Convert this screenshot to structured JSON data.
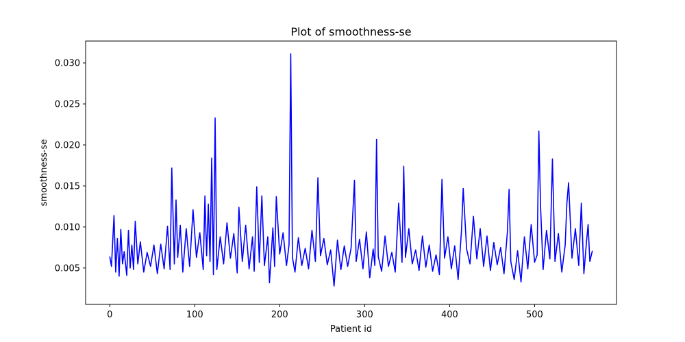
{
  "chart_data": {
    "type": "line",
    "title": "Plot of smoothness-se",
    "xlabel": "Patient id",
    "ylabel": "smoothness-se",
    "xlim": [
      -28.4,
      596.4
    ],
    "ylim": [
      0.000565,
      0.032669
    ],
    "xticks": [
      0,
      100,
      200,
      300,
      400,
      500
    ],
    "xtick_labels": [
      "0",
      "100",
      "200",
      "300",
      "400",
      "500"
    ],
    "yticks": [
      0.005,
      0.01,
      0.015,
      0.02,
      0.025,
      0.03
    ],
    "ytick_labels": [
      "0.005",
      "0.010",
      "0.015",
      "0.020",
      "0.025",
      "0.030"
    ],
    "grid": false,
    "series": [
      {
        "color": "#0000ff",
        "x": [
          0,
          2,
          5,
          7,
          9,
          11,
          13,
          15,
          17,
          20,
          22,
          24,
          26,
          28,
          30,
          33,
          36,
          40,
          44,
          48,
          52,
          56,
          60,
          64,
          68,
          71,
          73,
          76,
          78,
          80,
          83,
          86,
          90,
          94,
          98,
          102,
          106,
          110,
          112,
          114,
          116,
          118,
          120,
          122,
          124,
          126,
          130,
          134,
          138,
          142,
          146,
          150,
          152,
          156,
          160,
          164,
          168,
          170,
          173,
          176,
          179,
          182,
          186,
          188,
          192,
          194,
          196,
          200,
          204,
          208,
          211,
          213,
          215,
          218,
          222,
          226,
          230,
          234,
          238,
          242,
          245,
          248,
          252,
          256,
          260,
          264,
          268,
          272,
          276,
          280,
          284,
          288,
          290,
          294,
          298,
          302,
          306,
          310,
          312,
          314,
          316,
          320,
          324,
          328,
          332,
          336,
          340,
          344,
          346,
          348,
          352,
          356,
          360,
          364,
          368,
          372,
          376,
          380,
          384,
          388,
          391,
          394,
          398,
          402,
          406,
          410,
          414,
          416,
          420,
          424,
          428,
          432,
          436,
          440,
          444,
          448,
          452,
          456,
          460,
          464,
          468,
          470,
          472,
          476,
          480,
          484,
          488,
          492,
          496,
          500,
          503,
          505,
          507,
          510,
          514,
          518,
          521,
          524,
          528,
          532,
          536,
          538,
          540,
          544,
          548,
          552,
          555,
          558,
          561,
          563,
          565,
          568
        ],
        "y": [
          0.0064,
          0.0052,
          0.0114,
          0.0045,
          0.0086,
          0.004,
          0.0097,
          0.0055,
          0.007,
          0.0041,
          0.0096,
          0.005,
          0.0078,
          0.0048,
          0.0107,
          0.0055,
          0.0082,
          0.0045,
          0.0069,
          0.0052,
          0.0078,
          0.0043,
          0.0079,
          0.0049,
          0.0101,
          0.0048,
          0.0172,
          0.0055,
          0.0133,
          0.0063,
          0.0102,
          0.0045,
          0.0098,
          0.0052,
          0.0121,
          0.0063,
          0.0093,
          0.0048,
          0.0138,
          0.0065,
          0.0128,
          0.0058,
          0.0184,
          0.0042,
          0.0233,
          0.0048,
          0.0088,
          0.0055,
          0.0105,
          0.0062,
          0.0092,
          0.0044,
          0.0124,
          0.0058,
          0.0102,
          0.0049,
          0.0088,
          0.0046,
          0.0149,
          0.0057,
          0.0138,
          0.0053,
          0.0088,
          0.0032,
          0.0099,
          0.0052,
          0.0137,
          0.0067,
          0.0093,
          0.0053,
          0.0078,
          0.0311,
          0.0063,
          0.0045,
          0.0087,
          0.0053,
          0.0074,
          0.0049,
          0.0096,
          0.0058,
          0.016,
          0.0065,
          0.0086,
          0.0054,
          0.0072,
          0.0028,
          0.0084,
          0.0048,
          0.0077,
          0.0052,
          0.0074,
          0.0157,
          0.0058,
          0.0085,
          0.0049,
          0.0094,
          0.0038,
          0.0073,
          0.0053,
          0.0207,
          0.0064,
          0.0046,
          0.0089,
          0.0052,
          0.0069,
          0.0045,
          0.0129,
          0.0057,
          0.0174,
          0.0063,
          0.0098,
          0.0055,
          0.0072,
          0.0047,
          0.0089,
          0.0051,
          0.0078,
          0.0046,
          0.0066,
          0.0042,
          0.0158,
          0.0062,
          0.0088,
          0.0049,
          0.0077,
          0.0036,
          0.0096,
          0.0147,
          0.0073,
          0.0055,
          0.0113,
          0.0061,
          0.0098,
          0.0052,
          0.0089,
          0.0047,
          0.0081,
          0.0054,
          0.0075,
          0.0043,
          0.0094,
          0.0146,
          0.0058,
          0.0036,
          0.0071,
          0.0033,
          0.0088,
          0.0049,
          0.0103,
          0.0057,
          0.0066,
          0.0217,
          0.0126,
          0.0048,
          0.0096,
          0.0061,
          0.0183,
          0.0058,
          0.0092,
          0.0045,
          0.0078,
          0.0129,
          0.0154,
          0.0062,
          0.0098,
          0.0053,
          0.0129,
          0.0043,
          0.0081,
          0.0103,
          0.0058,
          0.0071
        ]
      }
    ]
  }
}
